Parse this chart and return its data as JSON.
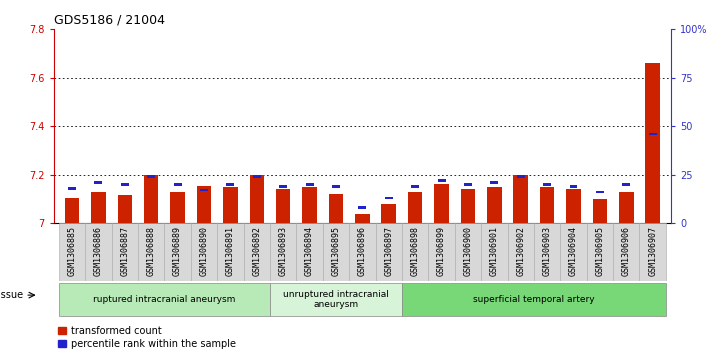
{
  "title": "GDS5186 / 21004",
  "samples": [
    "GSM1306885",
    "GSM1306886",
    "GSM1306887",
    "GSM1306888",
    "GSM1306889",
    "GSM1306890",
    "GSM1306891",
    "GSM1306892",
    "GSM1306893",
    "GSM1306894",
    "GSM1306895",
    "GSM1306896",
    "GSM1306897",
    "GSM1306898",
    "GSM1306899",
    "GSM1306900",
    "GSM1306901",
    "GSM1306902",
    "GSM1306903",
    "GSM1306904",
    "GSM1306905",
    "GSM1306906",
    "GSM1306907"
  ],
  "red_values": [
    7.105,
    7.13,
    7.115,
    7.2,
    7.13,
    7.155,
    7.15,
    7.2,
    7.14,
    7.15,
    7.12,
    7.04,
    7.08,
    7.13,
    7.16,
    7.14,
    7.15,
    7.2,
    7.15,
    7.14,
    7.1,
    7.13,
    7.66
  ],
  "blue_values": [
    18,
    21,
    20,
    24,
    20,
    17,
    20,
    24,
    19,
    20,
    19,
    8,
    13,
    19,
    22,
    20,
    21,
    24,
    20,
    19,
    16,
    20,
    46
  ],
  "ylim_left": [
    7.0,
    7.8
  ],
  "ylim_right": [
    0,
    100
  ],
  "yticks_left": [
    7.0,
    7.2,
    7.4,
    7.6,
    7.8
  ],
  "ytick_labels_left": [
    "7",
    "7.2",
    "7.4",
    "7.6",
    "7.8"
  ],
  "yticks_right": [
    0,
    25,
    50,
    75,
    100
  ],
  "ytick_labels_right": [
    "0",
    "25",
    "50",
    "75",
    "100%"
  ],
  "groups": [
    {
      "label": "ruptured intracranial aneurysm",
      "start": 0,
      "end": 7,
      "color": "#b8eab8"
    },
    {
      "label": "unruptured intracranial\naneurysm",
      "start": 8,
      "end": 12,
      "color": "#d8f4d8"
    },
    {
      "label": "superficial temporal artery",
      "start": 13,
      "end": 22,
      "color": "#78d878"
    }
  ],
  "tissue_label": "tissue",
  "left_axis_color": "#cc0000",
  "right_axis_color": "#3333cc",
  "bar_color": "#cc2200",
  "blue_color": "#2222cc",
  "figure_bg": "#ffffff",
  "plot_bg": "#ffffff",
  "xtick_bg": "#d8d8d8",
  "legend_red": "transformed count",
  "legend_blue": "percentile rank within the sample",
  "bar_width": 0.55,
  "baseline": 7.0,
  "dotted_gridlines": [
    7.2,
    7.4,
    7.6
  ],
  "title_fontsize": 9,
  "tick_fontsize": 7,
  "xtick_fontsize": 6
}
